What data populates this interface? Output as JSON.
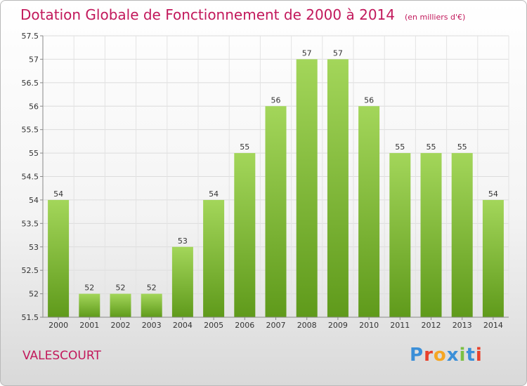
{
  "header": {
    "title": "Dotation Globale de Fonctionnement de 2000 à 2014",
    "subtitle": "(en milliers d'€)"
  },
  "footer": {
    "commune": "VALESCOURT",
    "logo_text": "Proxiti"
  },
  "colors": {
    "title": "#c2185b",
    "bar_top": "#a3d65a",
    "bar_bottom": "#5f9a1b",
    "logo": [
      "#3b8fd8",
      "#e8402b",
      "#f5a623",
      "#3b8fd8",
      "#7bc043",
      "#3b8fd8",
      "#e8402b"
    ]
  },
  "chart_data": {
    "type": "bar",
    "title": "Dotation Globale de Fonctionnement de 2000 à 2014",
    "subtitle": "(en milliers d'€)",
    "categories": [
      "2000",
      "2001",
      "2002",
      "2003",
      "2004",
      "2005",
      "2006",
      "2007",
      "2008",
      "2009",
      "2010",
      "2011",
      "2012",
      "2013",
      "2014"
    ],
    "values": [
      54,
      52,
      52,
      52,
      53,
      54,
      55,
      56,
      57,
      57,
      56,
      55,
      55,
      55,
      54
    ],
    "data_labels": [
      "54",
      "52",
      "52",
      "52",
      "53",
      "54",
      "55",
      "56",
      "57",
      "57",
      "56",
      "55",
      "55",
      "55",
      "54"
    ],
    "ylim": [
      51.5,
      57.5
    ],
    "yticks": [
      51.5,
      52,
      52.5,
      53,
      53.5,
      54,
      54.5,
      55,
      55.5,
      56,
      56.5,
      57,
      57.5
    ],
    "ytick_labels": [
      "51.5",
      "52",
      "52.5",
      "53",
      "53.5",
      "54",
      "54.5",
      "55",
      "55.5",
      "56",
      "56.5",
      "57",
      "57.5"
    ],
    "xlabel": "",
    "ylabel": "",
    "grid": true
  }
}
